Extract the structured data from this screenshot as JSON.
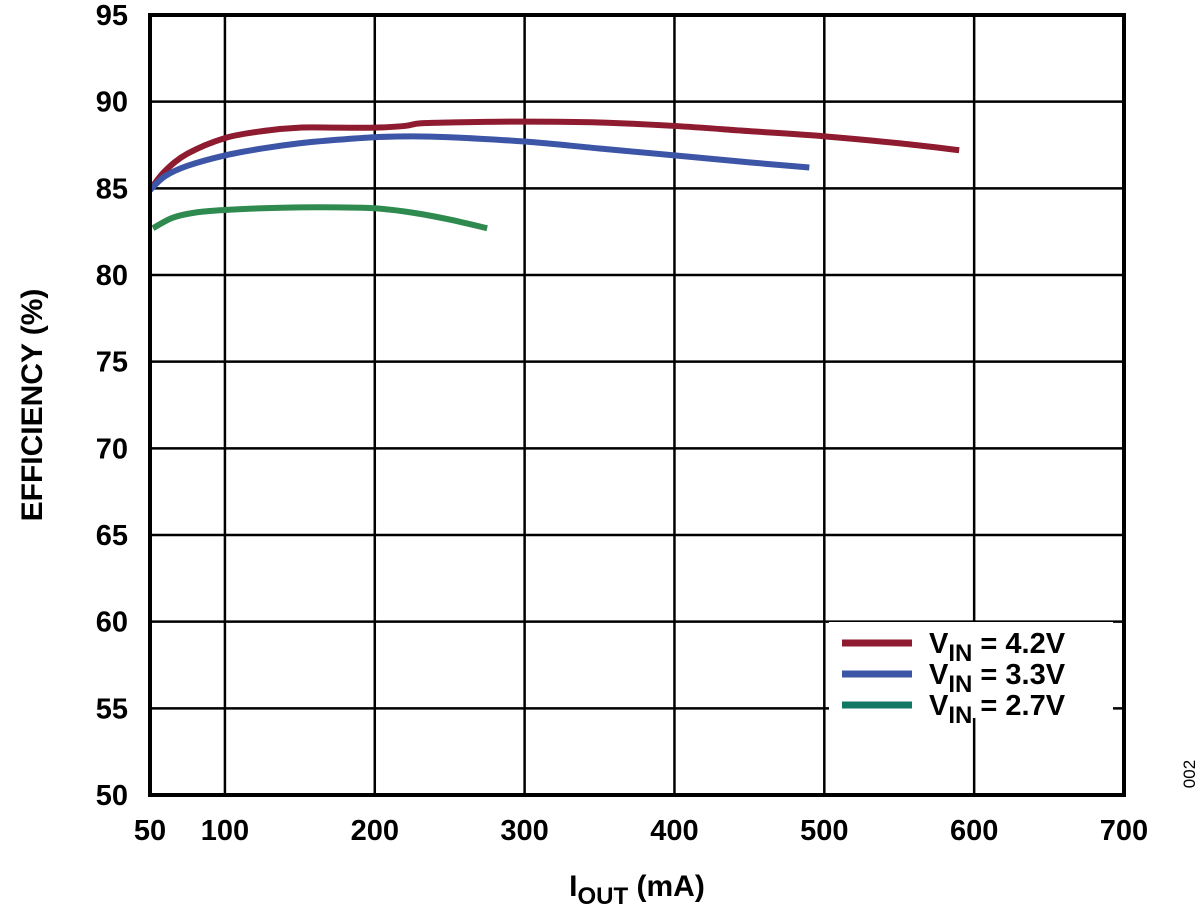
{
  "chart_data": {
    "type": "line",
    "title": "",
    "xlabel": "I_OUT (mA)",
    "xlabel_main": "I",
    "xlabel_sub": "OUT",
    "xlabel_unit": " (mA)",
    "ylabel": "EFFICIENCY (%)",
    "xlim": [
      50,
      700
    ],
    "ylim": [
      50,
      95
    ],
    "x_ticks": [
      50,
      100,
      200,
      300,
      400,
      500,
      600,
      700
    ],
    "x_tick_labels": [
      "50",
      "100",
      "200",
      "300",
      "400",
      "500",
      "600",
      "700"
    ],
    "y_ticks": [
      50,
      55,
      60,
      65,
      70,
      75,
      80,
      85,
      90,
      95
    ],
    "y_tick_labels": [
      "50",
      "55",
      "60",
      "65",
      "70",
      "75",
      "80",
      "85",
      "90",
      "95"
    ],
    "grid": true,
    "legend_position": "lower right",
    "series": [
      {
        "name": "VIN = 4.2V",
        "legend_main": "V",
        "legend_sub": "IN",
        "legend_value": " = 4.2V",
        "color": "#8E1B2F",
        "x": [
          50,
          60,
          75,
          100,
          125,
          150,
          175,
          200,
          220,
          230,
          250,
          300,
          350,
          400,
          450,
          500,
          550,
          590
        ],
        "y": [
          84.9,
          86.0,
          87.0,
          87.9,
          88.3,
          88.5,
          88.5,
          88.5,
          88.6,
          88.75,
          88.8,
          88.85,
          88.8,
          88.6,
          88.3,
          88.0,
          87.6,
          87.2
        ]
      },
      {
        "name": "VIN = 3.3V",
        "legend_main": "V",
        "legend_sub": "IN",
        "legend_value": " = 3.3V",
        "color": "#3D55A6",
        "x": [
          50,
          60,
          75,
          100,
          125,
          150,
          175,
          200,
          225,
          250,
          300,
          350,
          400,
          450,
          490
        ],
        "y": [
          84.9,
          85.7,
          86.3,
          86.9,
          87.3,
          87.6,
          87.8,
          87.95,
          88.0,
          87.95,
          87.7,
          87.3,
          86.9,
          86.5,
          86.2
        ]
      },
      {
        "name": "VIN = 2.7V",
        "legend_main": "V",
        "legend_sub": "IN",
        "legend_value": " = 2.7V",
        "color": "#2E8A4E",
        "legend_color": "#117866",
        "x": [
          52,
          65,
          80,
          100,
          125,
          150,
          175,
          200,
          225,
          250,
          275
        ],
        "y": [
          82.7,
          83.3,
          83.6,
          83.75,
          83.85,
          83.9,
          83.9,
          83.85,
          83.6,
          83.2,
          82.7
        ]
      }
    ]
  },
  "figure_id": "002"
}
